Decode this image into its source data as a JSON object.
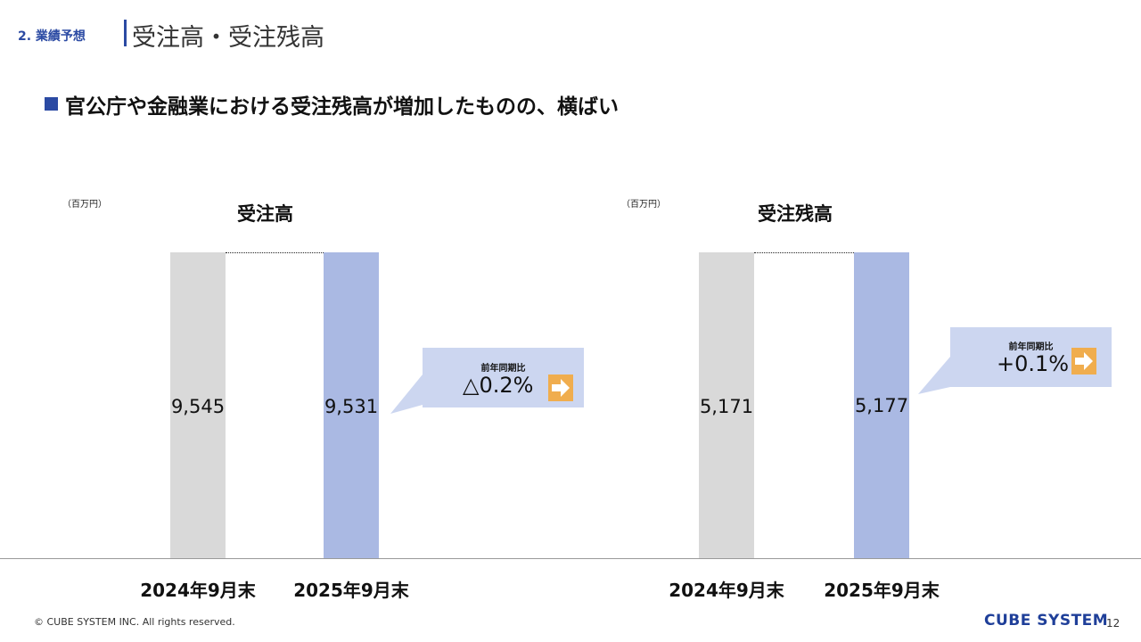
{
  "header": {
    "section_label": "2. 業績予想",
    "title": "受注高・受注残高",
    "headline": "官公庁や金融業における受注残高が増加したものの、横ばい"
  },
  "chart_data": [
    {
      "type": "bar",
      "title": "受注高",
      "unit": "（百万円）",
      "categories": [
        "2024年9月末",
        "2025年9月末"
      ],
      "values": [
        9545,
        9531
      ],
      "value_labels": [
        "9,545",
        "9,531"
      ],
      "bar_colors": [
        "#d9d9d9",
        "#aab9e3"
      ],
      "ylim": [
        0,
        9600
      ],
      "grid": false,
      "callout": {
        "label": "前年同期比",
        "value": "△0.2%"
      }
    },
    {
      "type": "bar",
      "title": "受注残高",
      "unit": "（百万円）",
      "categories": [
        "2024年9月末",
        "2025年9月末"
      ],
      "values": [
        5171,
        5177
      ],
      "value_labels": [
        "5,171",
        "5,177"
      ],
      "bar_colors": [
        "#d9d9d9",
        "#aab9e3"
      ],
      "ylim": [
        0,
        5200
      ],
      "grid": false,
      "callout": {
        "label": "前年同期比",
        "value": "+0.1%"
      }
    }
  ],
  "footer": {
    "copyright": "© CUBE SYSTEM INC. All rights reserved.",
    "brand": "CUBE SYSTEM",
    "page_number": "12"
  },
  "colors": {
    "accent": "#2b4aa3",
    "callout_bg": "#ccd6f0",
    "arrow_icon": "#f0ad4e"
  },
  "icons": {
    "callout_icon": "arrow-right-icon"
  }
}
